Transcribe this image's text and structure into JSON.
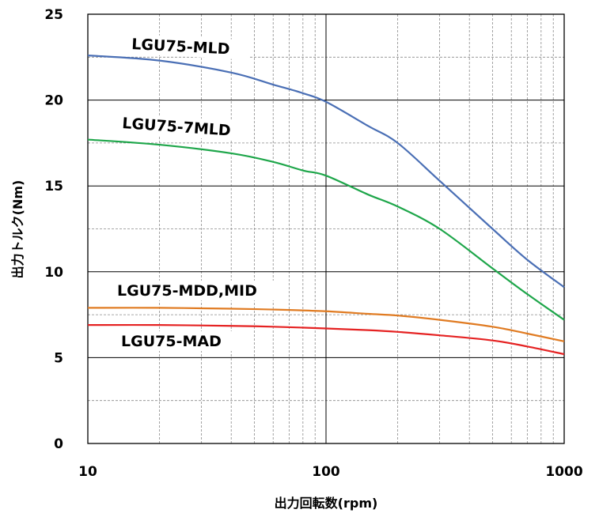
{
  "chart_data": {
    "type": "line",
    "xlabel": "出力回転数(rpm)",
    "ylabel": "出力トルク(Nm)",
    "xscale": "log",
    "xlim": [
      10,
      1000
    ],
    "ylim": [
      0,
      25
    ],
    "x_ticks": [
      10,
      100,
      1000
    ],
    "y_ticks": [
      0,
      5,
      10,
      15,
      20,
      25
    ],
    "grid": true,
    "series": [
      {
        "name": "LGU75-MLD",
        "color": "#4a6fb5",
        "x": [
          10,
          20,
          40,
          60,
          80,
          100,
          150,
          200,
          300,
          500,
          700,
          1000
        ],
        "y": [
          22.6,
          22.3,
          21.6,
          20.9,
          20.4,
          19.9,
          18.5,
          17.5,
          15.3,
          12.5,
          10.7,
          9.1
        ]
      },
      {
        "name": "LGU75-7MLD",
        "color": "#1ea64a",
        "x": [
          10,
          20,
          40,
          60,
          80,
          100,
          150,
          200,
          300,
          500,
          700,
          1000
        ],
        "y": [
          17.7,
          17.4,
          16.9,
          16.4,
          15.9,
          15.6,
          14.5,
          13.8,
          12.5,
          10.2,
          8.7,
          7.2
        ]
      },
      {
        "name": "LGU75-MDD,MID",
        "color": "#e07b22",
        "x": [
          10,
          20,
          40,
          60,
          100,
          150,
          200,
          300,
          500,
          700,
          1000
        ],
        "y": [
          7.9,
          7.9,
          7.85,
          7.8,
          7.7,
          7.55,
          7.45,
          7.2,
          6.8,
          6.4,
          5.95
        ]
      },
      {
        "name": "LGU75-MAD",
        "color": "#e52222",
        "x": [
          10,
          20,
          40,
          60,
          100,
          150,
          200,
          300,
          500,
          700,
          1000
        ],
        "y": [
          6.9,
          6.9,
          6.85,
          6.8,
          6.7,
          6.6,
          6.5,
          6.3,
          6.0,
          5.65,
          5.2
        ]
      }
    ],
    "series_labels": [
      {
        "text": "LGU75-MLD"
      },
      {
        "text": "LGU75-7MLD"
      },
      {
        "text": "LGU75-MDD,MID"
      },
      {
        "text": "LGU75-MAD"
      }
    ]
  }
}
